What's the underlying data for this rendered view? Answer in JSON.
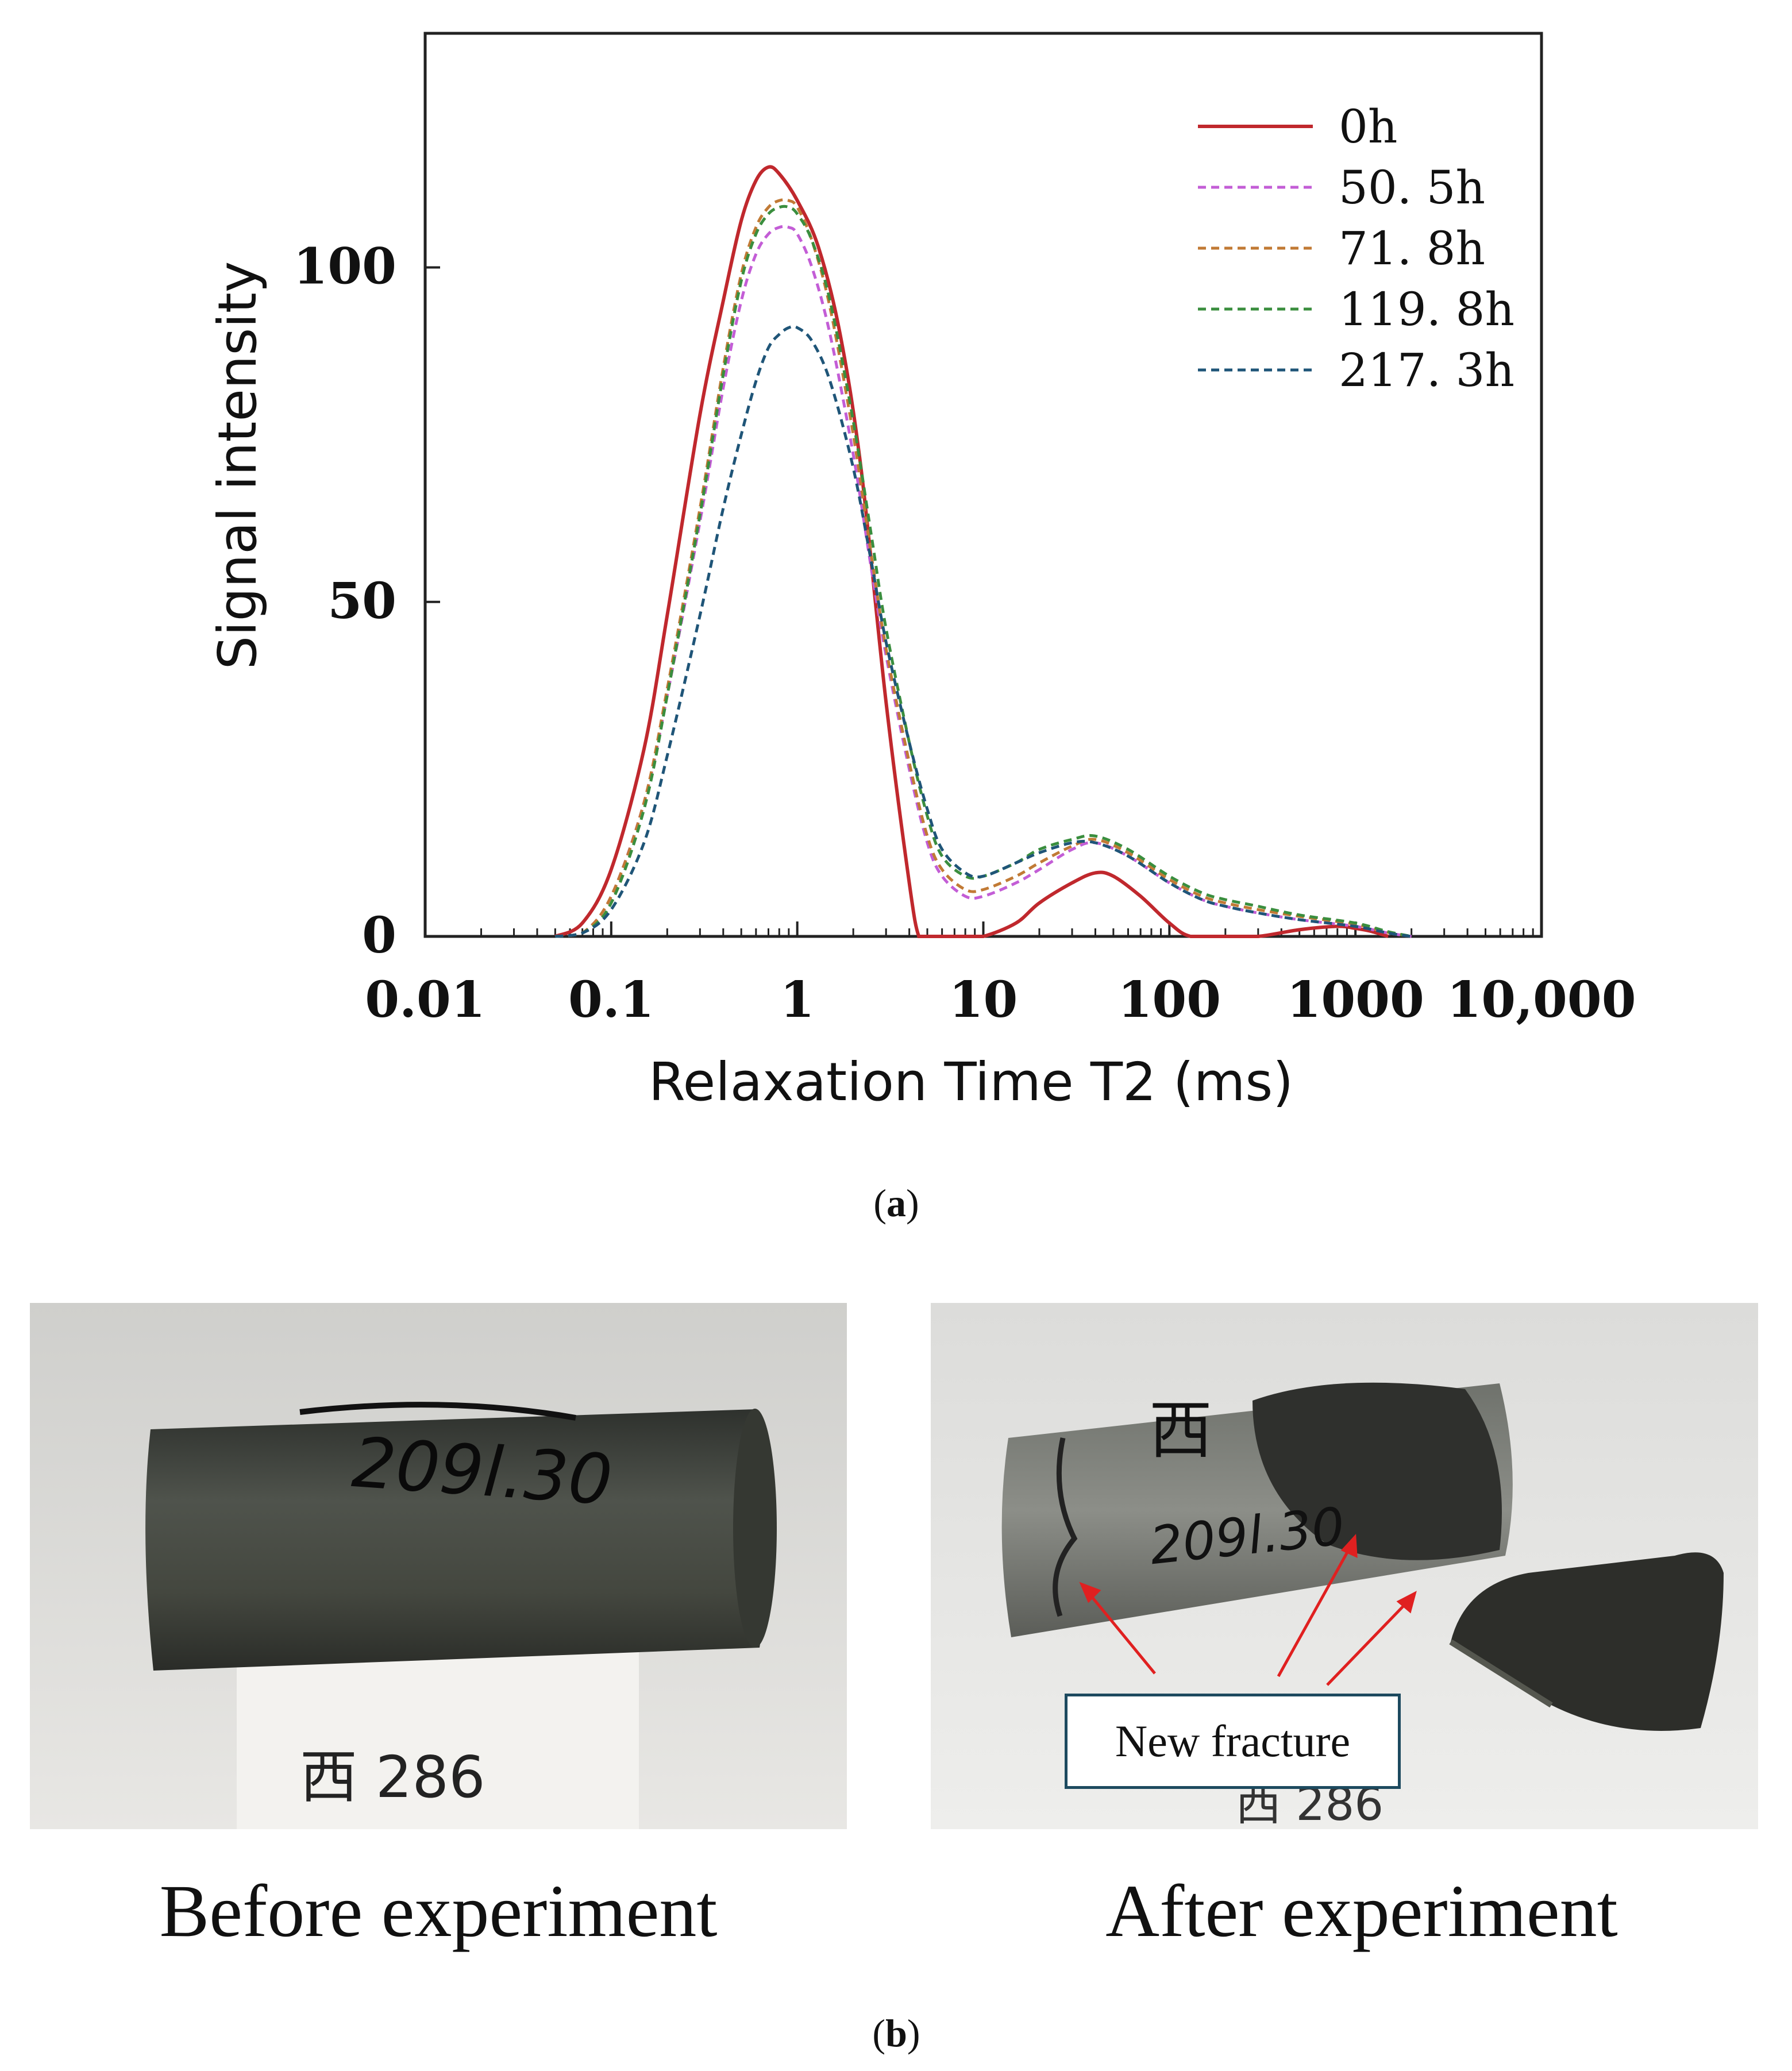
{
  "chart_data": {
    "type": "line",
    "xlabel": "Relaxation Time T2 (ms)",
    "ylabel": "Signal intensity",
    "xscale": "log",
    "xlim": [
      0.01,
      10000
    ],
    "ylim": [
      0,
      135
    ],
    "x_ticks": [
      0.01,
      0.1,
      1,
      10,
      100,
      1000,
      10000
    ],
    "x_tick_labels": [
      "0.01",
      "0.1",
      "1",
      "10",
      "100",
      "1000",
      "10,000"
    ],
    "y_ticks": [
      0,
      50,
      100
    ],
    "y_tick_labels": [
      "0",
      "50",
      "100"
    ],
    "legend_position": "top-right",
    "series": [
      {
        "name": "0h",
        "color": "#c0282d",
        "style": "solid",
        "x": [
          0.05,
          0.07,
          0.1,
          0.15,
          0.2,
          0.3,
          0.4,
          0.5,
          0.6,
          0.7,
          0.8,
          1.0,
          1.3,
          1.7,
          2.2,
          3.0,
          4.0,
          4.5,
          5.0,
          8,
          10,
          15,
          20,
          30,
          40,
          50,
          70,
          100,
          130,
          200,
          300,
          500,
          800,
          1000,
          1200,
          1500
        ],
        "y": [
          0,
          2,
          10,
          28,
          48,
          78,
          95,
          107,
          113,
          115,
          114,
          110,
          103,
          90,
          70,
          35,
          8,
          0,
          0,
          0,
          0,
          2,
          5,
          8,
          9.5,
          9,
          6,
          2,
          0,
          0,
          0,
          1,
          1.5,
          1.2,
          0.8,
          0
        ]
      },
      {
        "name": "50. 5h",
        "color": "#c35dd6",
        "style": "dashed",
        "x": [
          0.05,
          0.07,
          0.1,
          0.15,
          0.2,
          0.3,
          0.4,
          0.5,
          0.6,
          0.7,
          0.8,
          0.9,
          1.0,
          1.2,
          1.5,
          2.0,
          2.5,
          3.0,
          4,
          5,
          6,
          8,
          10,
          15,
          20,
          30,
          40,
          60,
          100,
          150,
          200,
          300,
          500,
          1000,
          1500,
          2000
        ],
        "y": [
          0,
          0.5,
          6,
          20,
          36,
          62,
          82,
          95,
          102,
          105,
          106,
          106,
          105,
          100,
          90,
          72,
          55,
          42,
          25,
          14,
          9,
          6,
          6,
          8,
          10,
          13,
          14,
          12,
          8,
          5.5,
          4.5,
          3.5,
          2.5,
          1.5,
          0.5,
          0
        ]
      },
      {
        "name": "71. 8h",
        "color": "#c17a35",
        "style": "dashed",
        "x": [
          0.05,
          0.07,
          0.1,
          0.15,
          0.2,
          0.3,
          0.4,
          0.5,
          0.6,
          0.7,
          0.8,
          0.9,
          1.0,
          1.2,
          1.5,
          2.0,
          2.5,
          3.0,
          4,
          5,
          6,
          8,
          10,
          15,
          20,
          30,
          40,
          60,
          100,
          150,
          200,
          300,
          500,
          1000,
          1500,
          2000
        ],
        "y": [
          0,
          0.5,
          6,
          20,
          37,
          64,
          85,
          99,
          106,
          109,
          110,
          110,
          109,
          104,
          94,
          75,
          57,
          43,
          26,
          15,
          10,
          7,
          7,
          9,
          11,
          13.5,
          14.5,
          12.5,
          8.5,
          6,
          5,
          4,
          3,
          1.8,
          0.6,
          0
        ]
      },
      {
        "name": "119. 8h",
        "color": "#3a8e3e",
        "style": "dashed",
        "x": [
          0.05,
          0.07,
          0.1,
          0.15,
          0.2,
          0.3,
          0.4,
          0.5,
          0.6,
          0.7,
          0.8,
          0.9,
          1.0,
          1.2,
          1.5,
          2.0,
          2.5,
          3.0,
          4,
          5,
          6,
          8,
          10,
          15,
          20,
          30,
          40,
          60,
          100,
          150,
          200,
          300,
          500,
          1000,
          1500,
          2000
        ],
        "y": [
          0,
          0.5,
          5,
          19,
          36,
          63,
          84,
          98,
          105,
          108,
          109,
          109,
          108,
          104,
          95,
          77,
          60,
          46,
          29,
          18,
          12,
          9,
          9,
          11,
          13,
          14.5,
          15,
          13,
          9,
          6.5,
          5.5,
          4.5,
          3.2,
          2,
          0.7,
          0
        ]
      },
      {
        "name": "217. 3h",
        "color": "#1f5578",
        "style": "dashed",
        "x": [
          0.05,
          0.07,
          0.1,
          0.15,
          0.2,
          0.3,
          0.4,
          0.5,
          0.6,
          0.7,
          0.8,
          0.9,
          1.0,
          1.2,
          1.5,
          2.0,
          2.5,
          3.0,
          4,
          5,
          6,
          8,
          10,
          15,
          20,
          30,
          40,
          60,
          100,
          150,
          200,
          300,
          500,
          1000,
          1500,
          2000
        ],
        "y": [
          0,
          0.5,
          4,
          14,
          27,
          48,
          64,
          75,
          83,
          88,
          90,
          91,
          91,
          89,
          83,
          70,
          56,
          44,
          29,
          19,
          13,
          9.5,
          9,
          11,
          12.5,
          14,
          14,
          12,
          8,
          5.5,
          4.5,
          3.5,
          2.5,
          1.5,
          0.5,
          0
        ]
      }
    ]
  },
  "captions": {
    "a": "(a)",
    "a_letter": "a",
    "b": "(b)",
    "b_letter": "b"
  },
  "photos": {
    "before_label": "Before experiment",
    "after_label": "After experiment",
    "annotation": "New fracture"
  },
  "colors": {
    "annotation_arrow": "#e02020",
    "annotation_border": "#1d4a5f"
  }
}
